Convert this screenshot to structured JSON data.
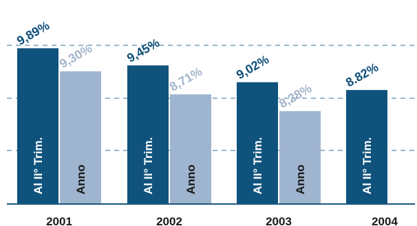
{
  "chart_data": {
    "type": "bar",
    "categories": [
      "2001",
      "2002",
      "2003",
      "2004"
    ],
    "series": [
      {
        "name": "Al II° Trim.",
        "values": [
          9.89,
          9.45,
          9.02,
          8.82
        ],
        "value_labels": [
          "9,89%",
          "9,45%",
          "9,02%",
          "8.82%"
        ],
        "color": "#0f537d",
        "value_label_color": "#0f4f7a"
      },
      {
        "name": "Anno",
        "values": [
          9.3,
          8.71,
          8.28,
          null
        ],
        "value_labels": [
          "9,30%",
          "8,71%",
          "8,28%",
          null
        ],
        "color": "#9fb4cf",
        "value_label_color": "#a3b4cc"
      }
    ],
    "title": "",
    "xlabel": "",
    "ylabel": "",
    "ylim": [
      5.9,
      10.0
    ],
    "grid": true
  }
}
